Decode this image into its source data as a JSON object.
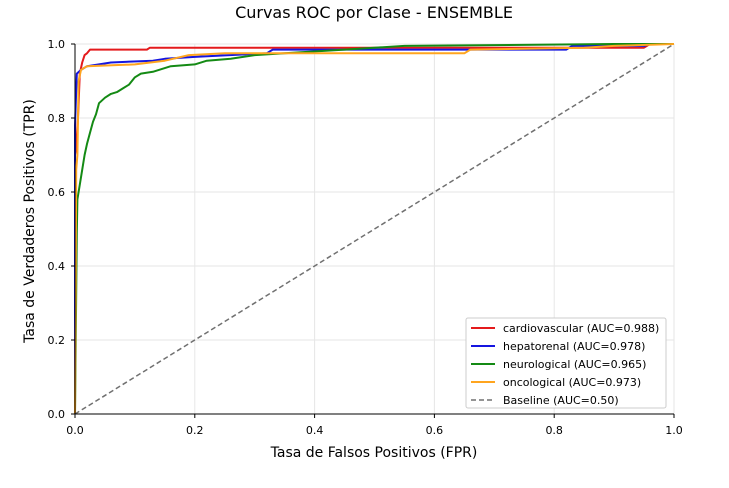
{
  "chart_data": {
    "type": "line",
    "title": "Curvas ROC por Clase - ENSEMBLE",
    "xlabel": "Tasa de Falsos Positivos (FPR)",
    "ylabel": "Tasa de Verdaderos Positivos (TPR)",
    "xlim": [
      0.0,
      1.0
    ],
    "ylim": [
      0.0,
      1.0
    ],
    "xticks": [
      "0.0",
      "0.2",
      "0.4",
      "0.6",
      "0.8",
      "1.0"
    ],
    "yticks": [
      "0.0",
      "0.2",
      "0.4",
      "0.6",
      "0.8",
      "1.0"
    ],
    "grid": true,
    "legend_position": "lower-right",
    "series": [
      {
        "name": "cardiovascular (AUC=0.988)",
        "color": "#e41a1c",
        "points": [
          [
            0,
            0
          ],
          [
            0,
            0.7
          ],
          [
            0.002,
            0.72
          ],
          [
            0.005,
            0.8
          ],
          [
            0.008,
            0.92
          ],
          [
            0.012,
            0.95
          ],
          [
            0.016,
            0.97
          ],
          [
            0.02,
            0.975
          ],
          [
            0.025,
            0.985
          ],
          [
            0.12,
            0.985
          ],
          [
            0.125,
            0.99
          ],
          [
            0.95,
            0.99
          ],
          [
            0.96,
            1.0
          ],
          [
            1.0,
            1.0
          ]
        ]
      },
      {
        "name": "hepatorenal (AUC=0.978)",
        "color": "#1515e0",
        "points": [
          [
            0,
            0
          ],
          [
            0,
            0.78
          ],
          [
            0.003,
            0.92
          ],
          [
            0.01,
            0.93
          ],
          [
            0.02,
            0.94
          ],
          [
            0.04,
            0.945
          ],
          [
            0.06,
            0.95
          ],
          [
            0.13,
            0.955
          ],
          [
            0.15,
            0.96
          ],
          [
            0.2,
            0.965
          ],
          [
            0.32,
            0.975
          ],
          [
            0.33,
            0.985
          ],
          [
            0.45,
            0.985
          ],
          [
            0.7,
            0.985
          ],
          [
            0.82,
            0.985
          ],
          [
            0.83,
            0.995
          ],
          [
            0.95,
            0.995
          ],
          [
            0.96,
            1.0
          ],
          [
            1.0,
            1.0
          ]
        ]
      },
      {
        "name": "neurological (AUC=0.965)",
        "color": "#148a14",
        "points": [
          [
            0,
            0
          ],
          [
            0.003,
            0.49
          ],
          [
            0.004,
            0.58
          ],
          [
            0.008,
            0.62
          ],
          [
            0.012,
            0.66
          ],
          [
            0.016,
            0.7
          ],
          [
            0.02,
            0.73
          ],
          [
            0.025,
            0.76
          ],
          [
            0.03,
            0.79
          ],
          [
            0.035,
            0.81
          ],
          [
            0.04,
            0.84
          ],
          [
            0.05,
            0.855
          ],
          [
            0.06,
            0.865
          ],
          [
            0.07,
            0.87
          ],
          [
            0.08,
            0.88
          ],
          [
            0.09,
            0.89
          ],
          [
            0.1,
            0.91
          ],
          [
            0.11,
            0.92
          ],
          [
            0.13,
            0.925
          ],
          [
            0.16,
            0.94
          ],
          [
            0.2,
            0.945
          ],
          [
            0.22,
            0.955
          ],
          [
            0.26,
            0.96
          ],
          [
            0.3,
            0.97
          ],
          [
            0.35,
            0.975
          ],
          [
            0.45,
            0.985
          ],
          [
            0.55,
            0.995
          ],
          [
            0.9,
            1.0
          ],
          [
            1.0,
            1.0
          ]
        ]
      },
      {
        "name": "oncological (AUC=0.973)",
        "color": "#ffa51f",
        "points": [
          [
            0,
            0
          ],
          [
            0.002,
            0.66
          ],
          [
            0.004,
            0.7
          ],
          [
            0.006,
            0.9
          ],
          [
            0.01,
            0.93
          ],
          [
            0.02,
            0.94
          ],
          [
            0.1,
            0.945
          ],
          [
            0.15,
            0.955
          ],
          [
            0.19,
            0.97
          ],
          [
            0.25,
            0.975
          ],
          [
            0.5,
            0.975
          ],
          [
            0.65,
            0.975
          ],
          [
            0.66,
            0.985
          ],
          [
            0.85,
            0.99
          ],
          [
            0.9,
            0.995
          ],
          [
            1.0,
            1.0
          ]
        ]
      },
      {
        "name": "Baseline (AUC=0.50)",
        "color": "#707070",
        "dashed": true,
        "points": [
          [
            0,
            0
          ],
          [
            1,
            1
          ]
        ]
      }
    ]
  }
}
